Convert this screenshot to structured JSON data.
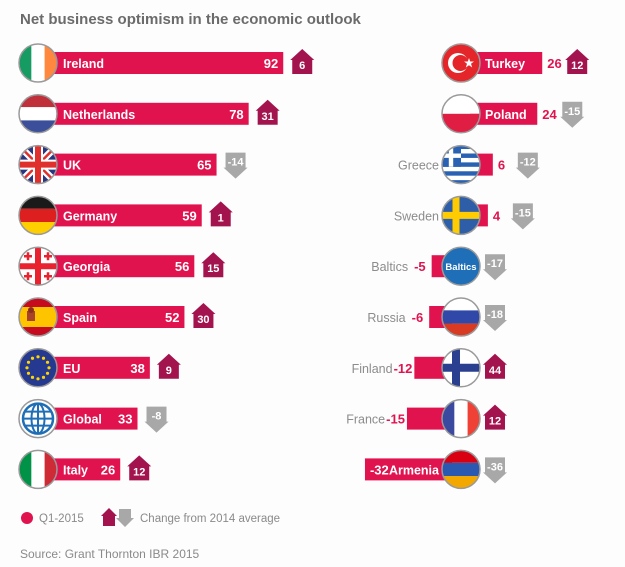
{
  "chart_data": {
    "type": "bar",
    "title": "Net business optimism in the economic outlook",
    "xlabel": "",
    "ylabel": "",
    "series_names": {
      "value": "Q1-2015",
      "change": "Change from 2014 average"
    },
    "left_column": [
      {
        "country": "Ireland",
        "flag": "ireland",
        "value": 92,
        "change": 6
      },
      {
        "country": "Netherlands",
        "flag": "netherlands",
        "value": 78,
        "change": 31
      },
      {
        "country": "UK",
        "flag": "uk",
        "value": 65,
        "change": -14
      },
      {
        "country": "Germany",
        "flag": "germany",
        "value": 59,
        "change": 1
      },
      {
        "country": "Georgia",
        "flag": "georgia",
        "value": 56,
        "change": 15
      },
      {
        "country": "Spain",
        "flag": "spain",
        "value": 52,
        "change": 30
      },
      {
        "country": "EU",
        "flag": "eu",
        "value": 38,
        "change": 9
      },
      {
        "country": "Global",
        "flag": "global",
        "value": 33,
        "change": -8
      },
      {
        "country": "Italy",
        "flag": "italy",
        "value": 26,
        "change": 12
      }
    ],
    "right_column": [
      {
        "country": "Turkey",
        "flag": "turkey",
        "value": 26,
        "change": 12
      },
      {
        "country": "Poland",
        "flag": "poland",
        "value": 24,
        "change": -15
      },
      {
        "country": "Greece",
        "flag": "greece",
        "value": 6,
        "change": -12
      },
      {
        "country": "Sweden",
        "flag": "sweden",
        "value": 4,
        "change": -15
      },
      {
        "country": "Baltics",
        "flag": "baltics",
        "flag_text": "Baltics",
        "value": -5,
        "change": -17
      },
      {
        "country": "Russia",
        "flag": "russia",
        "value": -6,
        "change": -18
      },
      {
        "country": "Finland",
        "flag": "finland",
        "value": -12,
        "change": 44
      },
      {
        "country": "France",
        "flag": "france",
        "value": -15,
        "change": 12
      },
      {
        "country": "Armenia",
        "flag": "armenia",
        "value": -32,
        "change": -36
      }
    ]
  },
  "legend": {
    "value_label": "Q1-2015",
    "change_label": "Change from 2014 average",
    "up_icon": "house-up-icon",
    "down_icon": "arrow-down-icon"
  },
  "source": "Source: Grant Thornton IBR 2015",
  "colors": {
    "bar": "#e0134f",
    "up": "#a3144f",
    "down": "#a8a8a8",
    "title": "#6b6b6b",
    "muted_text": "#8c8c8c"
  }
}
